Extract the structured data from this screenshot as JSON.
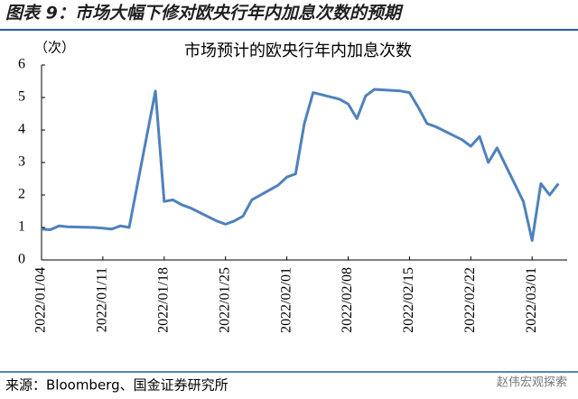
{
  "header_title": "图表 9：市场大幅下修对欧央行年内加息次数的预期",
  "source": "来源：Bloomberg、国金证券研究所",
  "watermark": "赵伟宏观探索",
  "chart_data": {
    "type": "line",
    "title": "市场预计的欧央行年内加息次数",
    "y_label": "（次）",
    "x": [
      "2022/01/04",
      "2022/01/05",
      "2022/01/06",
      "2022/01/07",
      "2022/01/10",
      "2022/01/11",
      "2022/01/12",
      "2022/01/13",
      "2022/01/14",
      "2022/01/17",
      "2022/01/18",
      "2022/01/19",
      "2022/01/20",
      "2022/01/21",
      "2022/01/24",
      "2022/01/25",
      "2022/01/26",
      "2022/01/27",
      "2022/01/28",
      "2022/01/31",
      "2022/02/01",
      "2022/02/02",
      "2022/02/03",
      "2022/02/04",
      "2022/02/07",
      "2022/02/08",
      "2022/02/09",
      "2022/02/10",
      "2022/02/11",
      "2022/02/14",
      "2022/02/15",
      "2022/02/16",
      "2022/02/17",
      "2022/02/18",
      "2022/02/21",
      "2022/02/22",
      "2022/02/23",
      "2022/02/24",
      "2022/02/25",
      "2022/02/28",
      "2022/03/01",
      "2022/03/02",
      "2022/03/03",
      "2022/03/04"
    ],
    "series": [
      {
        "name": "市场预计的欧央行年内加息次数",
        "color": "#4f81bd",
        "values": [
          0.95,
          0.93,
          1.05,
          1.02,
          1.0,
          0.98,
          0.95,
          1.05,
          1.0,
          5.2,
          1.8,
          1.85,
          1.7,
          1.6,
          1.2,
          1.1,
          1.2,
          1.35,
          1.85,
          2.3,
          2.55,
          2.65,
          4.2,
          5.15,
          4.95,
          4.8,
          4.35,
          5.05,
          5.25,
          5.2,
          5.15,
          4.7,
          4.2,
          4.1,
          3.7,
          3.5,
          3.8,
          3.0,
          3.45,
          1.8,
          0.6,
          2.35,
          2.0,
          2.35
        ]
      }
    ],
    "xlim": [
      "2022/01/04",
      "2022/03/05"
    ],
    "xticks": [
      "2022/01/04",
      "2022/01/11",
      "2022/01/18",
      "2022/01/25",
      "2022/02/01",
      "2022/02/08",
      "2022/02/15",
      "2022/02/22",
      "2022/03/01"
    ],
    "ylim": [
      0,
      6
    ],
    "yticks": [
      0,
      1,
      2,
      3,
      4,
      5,
      6
    ],
    "grid": false
  }
}
